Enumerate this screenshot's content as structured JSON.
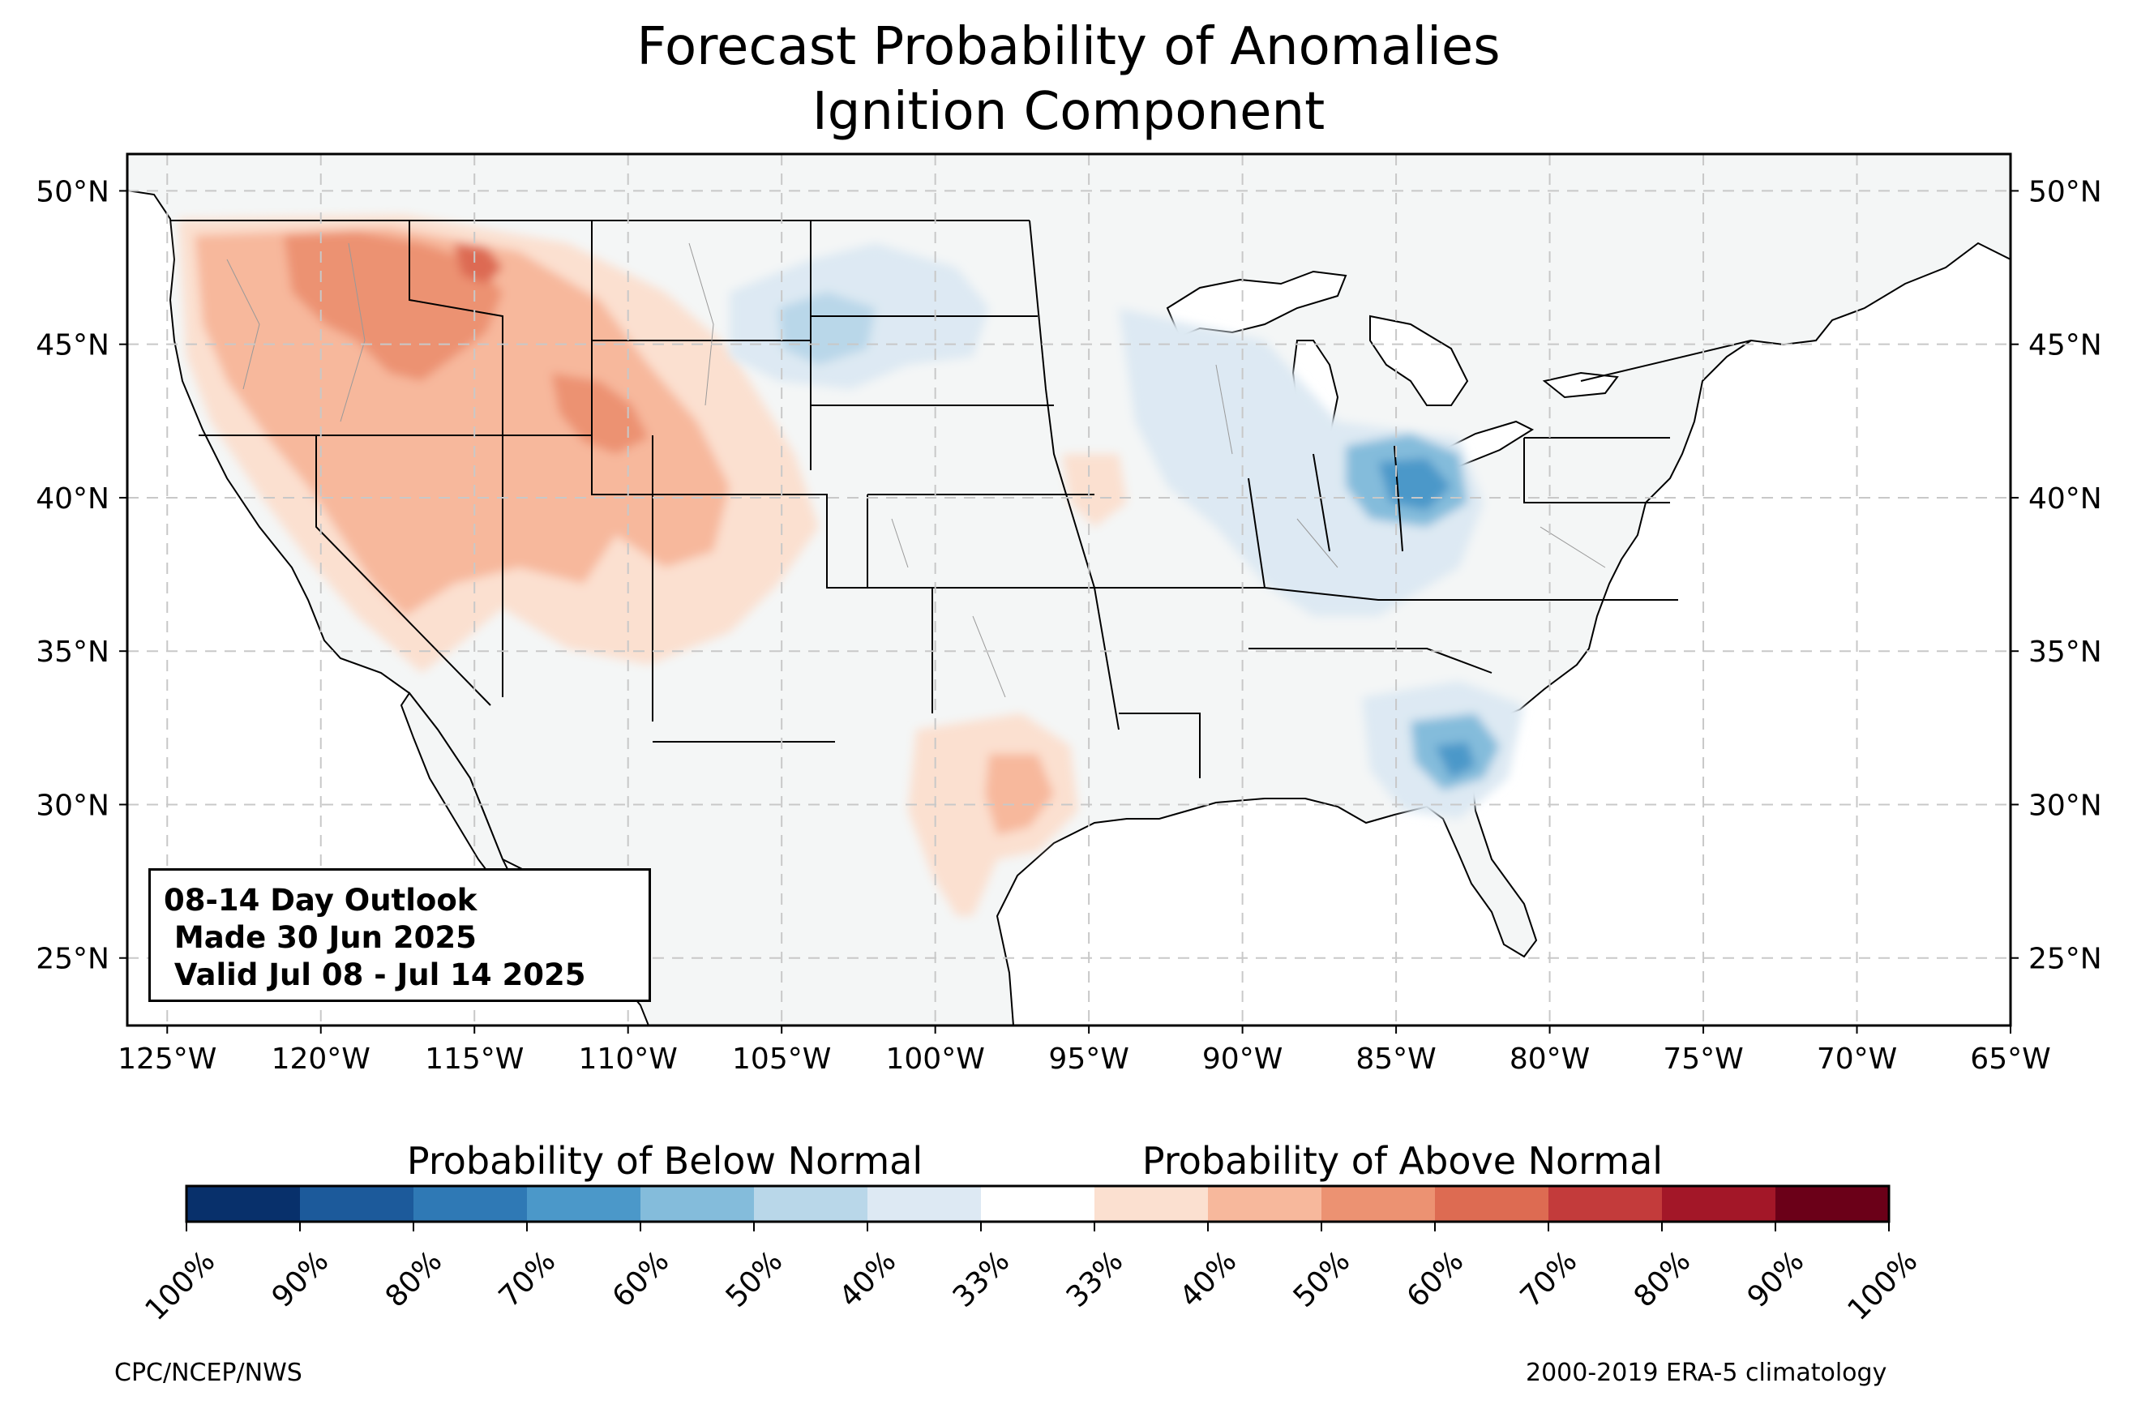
{
  "title": {
    "line1": "Forecast Probability of Anomalies",
    "line2": "Ignition Component"
  },
  "map": {
    "lat_range": [
      22.8,
      51.2
    ],
    "lon_range": [
      -126.3,
      -65.0
    ],
    "lat_ticks": [
      "50°N",
      "45°N",
      "40°N",
      "35°N",
      "30°N",
      "25°N"
    ],
    "lat_values": [
      50,
      45,
      40,
      35,
      30,
      25
    ],
    "lon_ticks": [
      "125°W",
      "120°W",
      "115°W",
      "110°W",
      "105°W",
      "100°W",
      "95°W",
      "90°W",
      "85°W",
      "80°W",
      "75°W",
      "70°W",
      "65°W"
    ],
    "lon_values": [
      -125,
      -120,
      -115,
      -110,
      -105,
      -100,
      -95,
      -90,
      -85,
      -80,
      -75,
      -70,
      -65
    ],
    "gridlines": true,
    "land_color": "#f4f6f6",
    "anomaly_regions": [
      {
        "category": "above",
        "level": "50-60%",
        "area": "Idaho / western Montana"
      },
      {
        "category": "above",
        "level": "40-50%",
        "area": "Great Basin, Wyoming, Colorado, Utah"
      },
      {
        "category": "above",
        "level": "40-50%",
        "area": "Central Texas"
      },
      {
        "category": "below",
        "level": "60-70%",
        "area": "Indiana / Ohio"
      },
      {
        "category": "below",
        "level": "60-70%",
        "area": "Georgia / South Carolina"
      },
      {
        "category": "below",
        "level": "33-40%",
        "area": "Dakotas / Nebraska"
      }
    ]
  },
  "outlook_box": {
    "line1": "08-14 Day Outlook",
    "line2": " Made 30 Jun 2025",
    "line3": " Valid Jul 08 - Jul 14 2025"
  },
  "colorbar": {
    "below_title": "Probability of Below Normal",
    "above_title": "Probability of Above Normal",
    "colors": [
      "#08306b",
      "#1c5a9b",
      "#2f79b5",
      "#4b98c9",
      "#84bcdb",
      "#b9d7e9",
      "#dde9f3",
      "#ffffff",
      "#fbe0d0",
      "#f7b89c",
      "#ec9272",
      "#dd6b52",
      "#c33b3b",
      "#a31728",
      "#6b0018"
    ],
    "tick_labels": [
      "100%",
      "90%",
      "80%",
      "70%",
      "60%",
      "50%",
      "40%",
      "33%",
      "33%",
      "40%",
      "50%",
      "60%",
      "70%",
      "80%",
      "90%",
      "100%"
    ]
  },
  "footer": {
    "credit": "CPC/NCEP/NWS",
    "climatology": "2000-2019 ERA-5 climatology"
  }
}
